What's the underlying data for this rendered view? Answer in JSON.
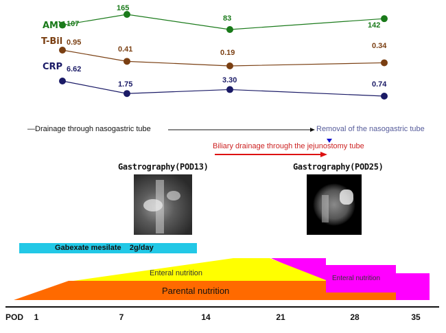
{
  "chart_data": {
    "type": "line",
    "x_unit": "POD",
    "series": [
      {
        "name": "AMY",
        "color": "#1a7a1a",
        "points": [
          {
            "x": 3,
            "y": 107,
            "label": "107"
          },
          {
            "x": 7,
            "y": 165,
            "label": "165"
          },
          {
            "x": 16,
            "y": 83,
            "label": "83"
          },
          {
            "x": 31,
            "y": 142,
            "label": "142"
          }
        ]
      },
      {
        "name": "T-Bil",
        "color": "#7a3f12",
        "points": [
          {
            "x": 3,
            "y": 0.95,
            "label": "0.95"
          },
          {
            "x": 7,
            "y": 0.41,
            "label": "0.41"
          },
          {
            "x": 16,
            "y": 0.19,
            "label": "0.19"
          },
          {
            "x": 31,
            "y": 0.34,
            "label": "0.34"
          }
        ]
      },
      {
        "name": "CRP",
        "color": "#1a1a66",
        "points": [
          {
            "x": 3,
            "y": 6.62,
            "label": "6.62"
          },
          {
            "x": 7,
            "y": 1.75,
            "label": "1.75"
          },
          {
            "x": 16,
            "y": 3.3,
            "label": "3.30"
          },
          {
            "x": 31,
            "y": 0.74,
            "label": "0.74"
          }
        ]
      }
    ],
    "axis": {
      "label": "POD",
      "ticks": [
        "1",
        "7",
        "14",
        "21",
        "28",
        "35"
      ]
    }
  },
  "annotations": {
    "drainage_text": "—Drainage through nasogastric tube",
    "removal_text": "Removal of the nasogastric tube",
    "biliary_text": "Biliary drainage through the jejunostomy tube",
    "gastro1": "Gastrography(POD13)",
    "gastro2": "Gastrography(POD25)"
  },
  "therapy": {
    "gabexate": "Gabexate mesilate    2g/day",
    "enteral1": "Enteral nutrition",
    "parenteral": "Parental nutrition",
    "enteral2": "Enteral nutrition"
  },
  "colors": {
    "gabexate": "#22c8e6",
    "enteral1": "#ffff00",
    "parenteral": "#ff6a00",
    "magenta": "#ff00ff",
    "drain_arrow": "#111111",
    "biliary_arrow": "#dd1111",
    "removal_marker": "#1010cc"
  }
}
